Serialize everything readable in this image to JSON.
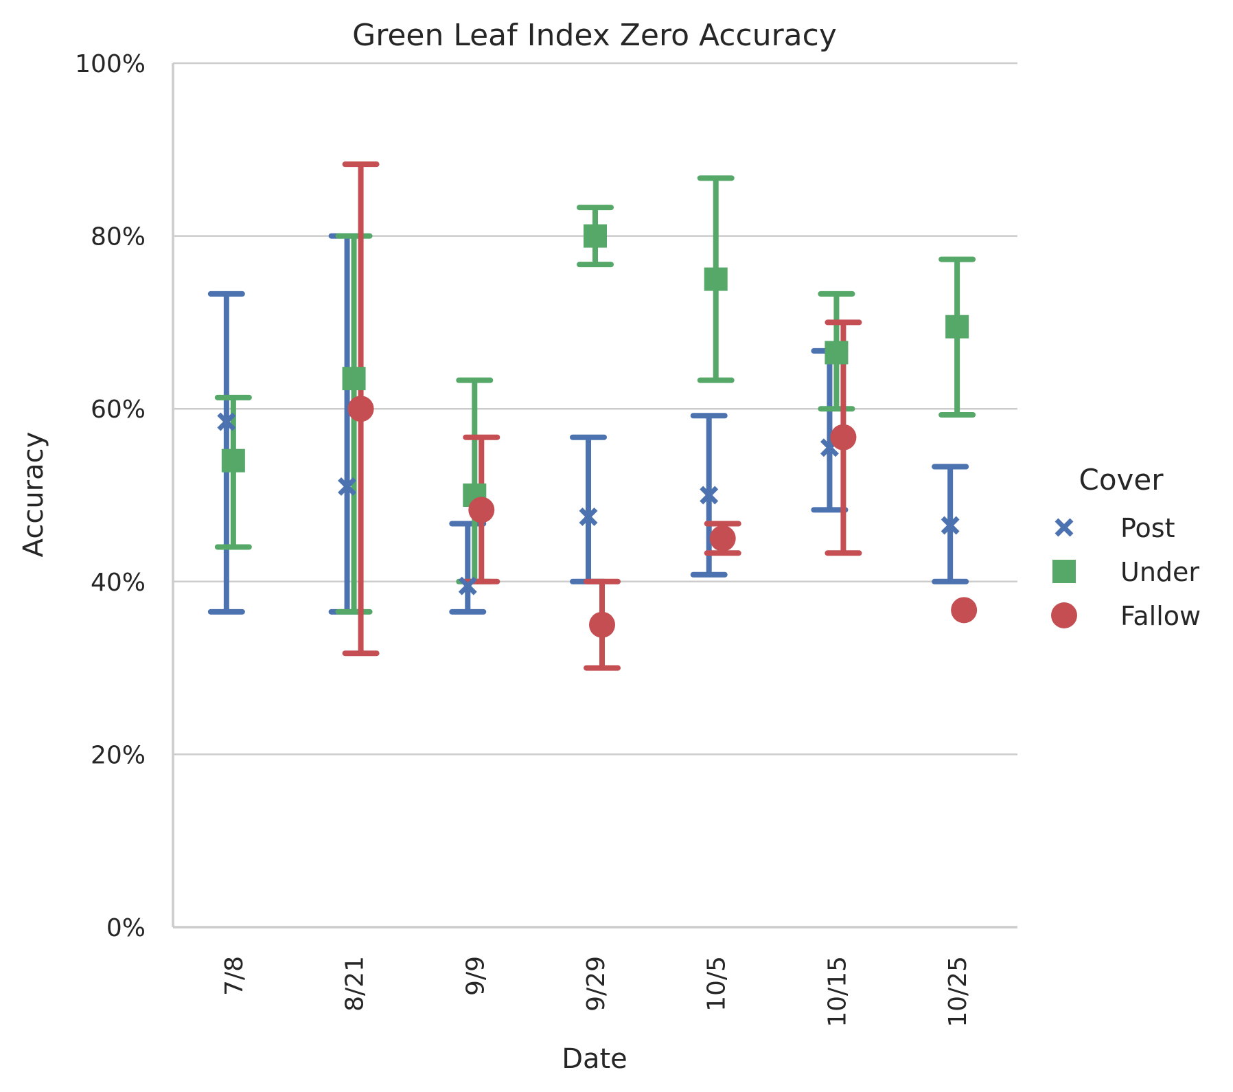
{
  "chart_data": {
    "type": "scatter",
    "title": "Green Leaf Index Zero Accuracy",
    "xlabel": "Date",
    "ylabel": "Accuracy",
    "categories": [
      "7/8",
      "8/21",
      "9/9",
      "9/29",
      "10/5",
      "10/15",
      "10/25"
    ],
    "ylim": [
      0,
      100
    ],
    "yticks": [
      0,
      20,
      40,
      60,
      80,
      100
    ],
    "ytick_labels": [
      "0%",
      "20%",
      "40%",
      "60%",
      "80%",
      "100%"
    ],
    "grid": "horizontal",
    "legend": {
      "title": "Cover",
      "placement": "right"
    },
    "series": [
      {
        "name": "Post",
        "marker": "x",
        "color": "#4c72b0",
        "values": [
          58.5,
          51,
          39.5,
          47.5,
          50,
          55.5,
          46.5
        ],
        "err_low": [
          36.5,
          36.5,
          36.5,
          40,
          40.8,
          48.3,
          40
        ],
        "err_high": [
          73.3,
          80,
          46.7,
          56.7,
          59.2,
          66.7,
          53.3
        ]
      },
      {
        "name": "Under",
        "marker": "square",
        "color": "#55a868",
        "values": [
          54,
          63.5,
          50,
          80,
          75,
          66.5,
          69.5
        ],
        "err_low": [
          44,
          36.5,
          40,
          76.7,
          63.3,
          60,
          59.3
        ],
        "err_high": [
          61.3,
          80,
          63.3,
          83.3,
          86.7,
          73.3,
          77.3
        ]
      },
      {
        "name": "Fallow",
        "marker": "circle",
        "color": "#c44e52",
        "values": [
          null,
          60,
          48.3,
          35,
          45,
          56.7,
          36.7
        ],
        "err_low": [
          null,
          31.7,
          40,
          30,
          43.3,
          43.3,
          null
        ],
        "err_high": [
          null,
          88.3,
          56.7,
          40,
          46.7,
          70,
          null
        ]
      }
    ]
  }
}
